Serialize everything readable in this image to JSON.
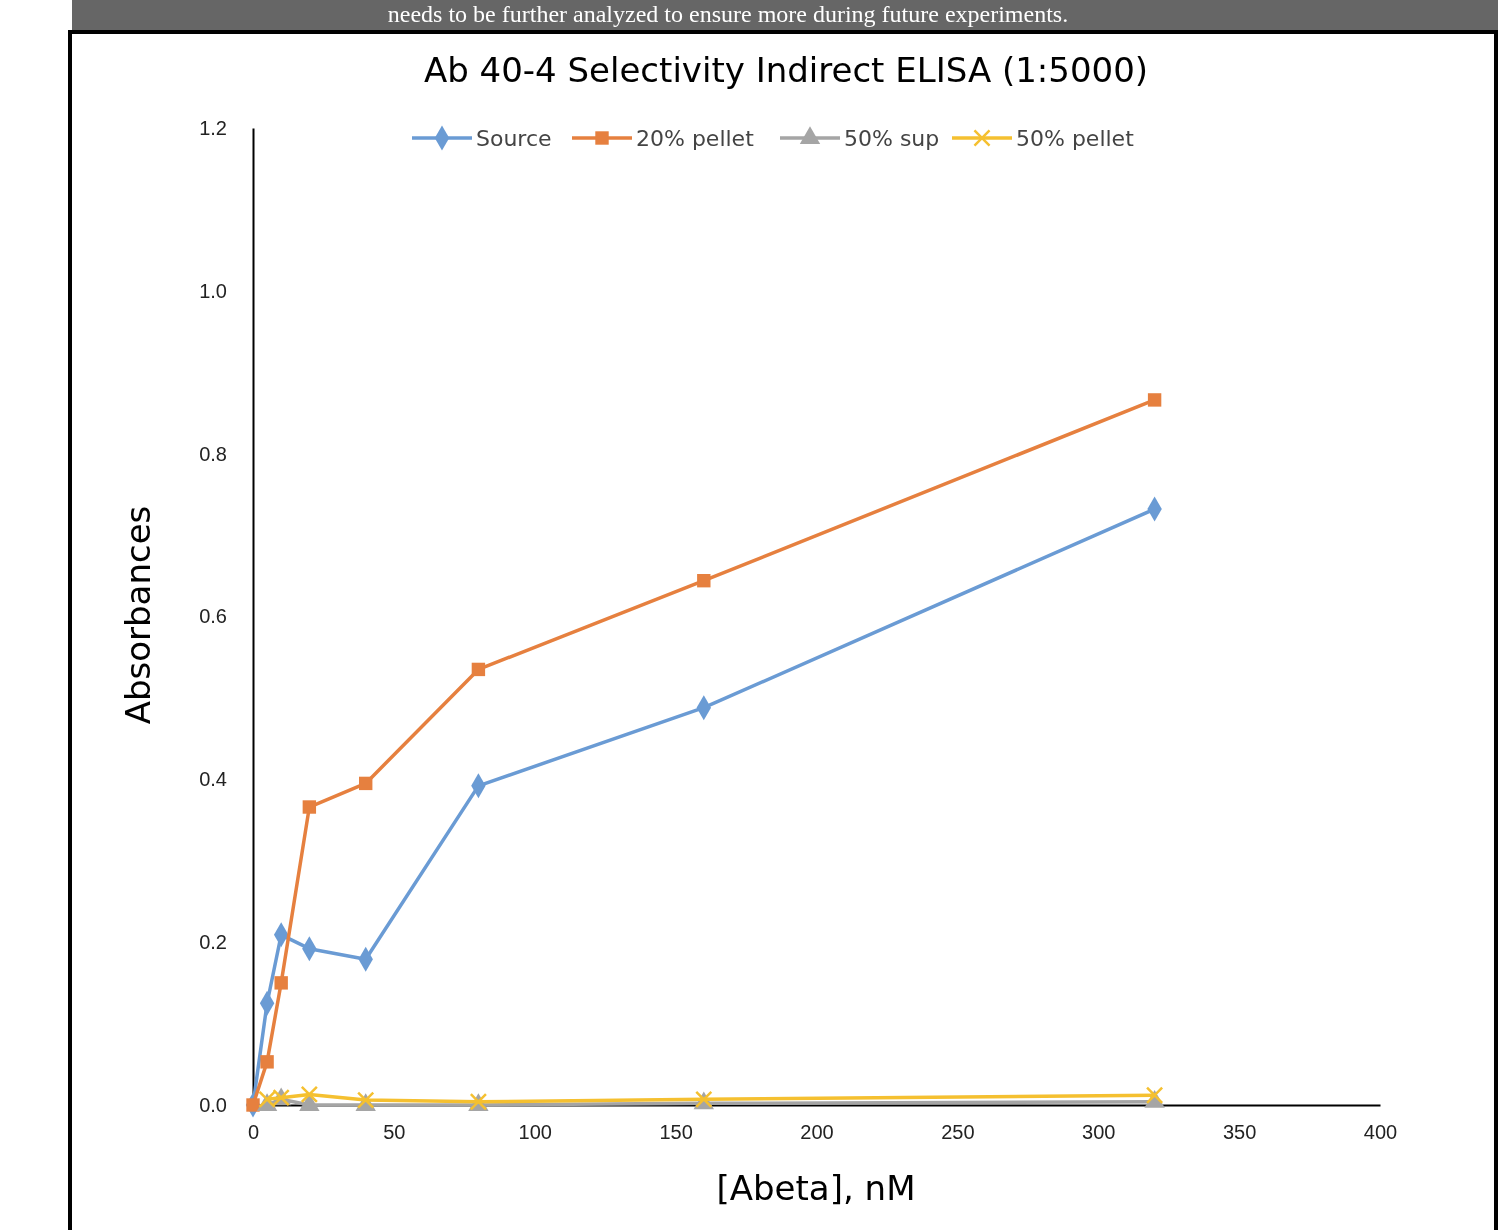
{
  "chart_data": {
    "type": "line",
    "title": "Ab 40-4 Selectivity Indirect ELISA (1:5000)",
    "xlabel": "[Abeta], nM",
    "ylabel": "Absorbances",
    "annotations": [
      "needs to be further analyzed to ensure more during future experiments."
    ],
    "x": [
      0,
      5,
      10,
      20,
      40,
      80,
      160,
      320
    ],
    "series": [
      {
        "name": "Source",
        "color": "#6a9bd4",
        "marker": "diamond",
        "values": [
          0,
          0.125,
          0.209,
          0.192,
          0.179,
          0.392,
          0.488,
          0.732
        ]
      },
      {
        "name": "20% pellet",
        "color": "#e6803f",
        "marker": "square",
        "values": [
          0,
          0.053,
          0.15,
          0.366,
          0.395,
          0.535,
          0.644,
          0.866
        ]
      },
      {
        "name": "50% sup",
        "color": "#a5a5a5",
        "marker": "triangle",
        "values": [
          null,
          0,
          0.007,
          0,
          0,
          0,
          0.002,
          0.004
        ]
      },
      {
        "name": "50% pellet",
        "color": "#f5c030",
        "marker": "cross",
        "values": [
          null,
          0.007,
          0.009,
          0.013,
          0.006,
          0.004,
          0.007,
          0.012
        ]
      }
    ],
    "xlim": [
      0,
      400
    ],
    "xticks": [
      0,
      50,
      100,
      150,
      200,
      250,
      300,
      350,
      400
    ],
    "ylim": [
      0,
      1.2
    ],
    "yticks": [
      {
        "value": 0,
        "label": "0.0"
      },
      0.2,
      0.4,
      0.6,
      0.8,
      {
        "value": 1,
        "label": "1.0"
      },
      1.2
    ],
    "grid": false,
    "legend": "top",
    "line_style": "solid"
  }
}
